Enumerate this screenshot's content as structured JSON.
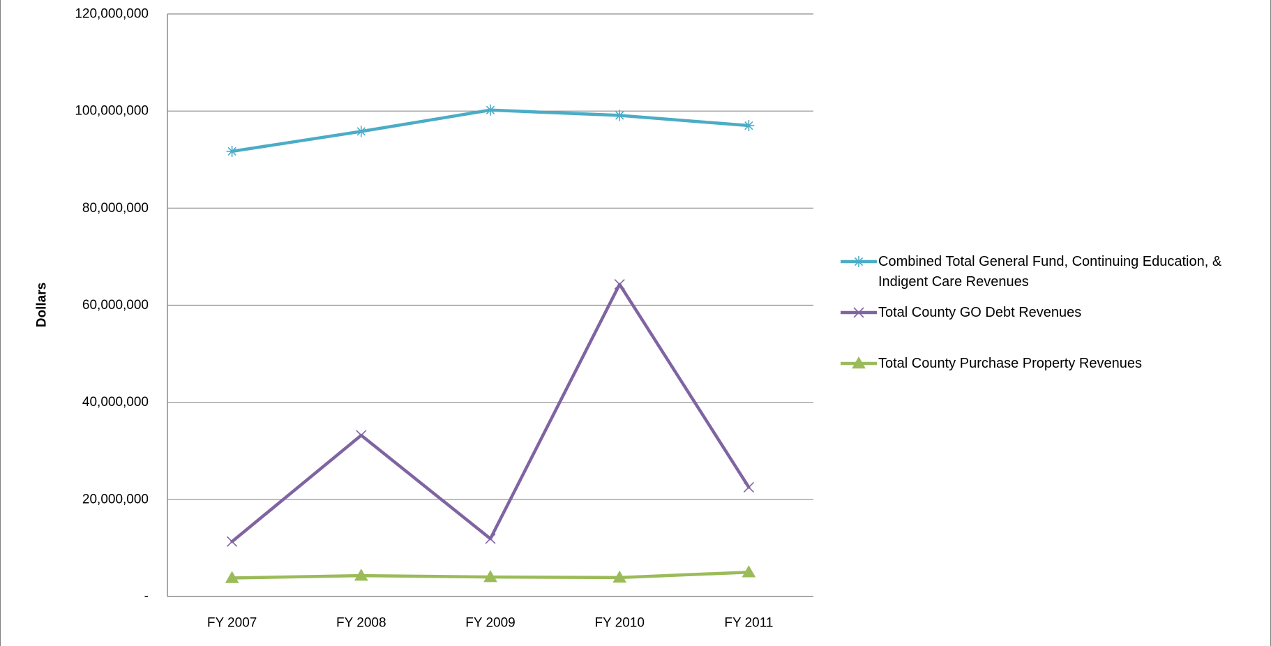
{
  "chart_data": {
    "type": "line",
    "title": "",
    "xlabel": "",
    "ylabel": "Dollars",
    "categories": [
      "FY 2007",
      "FY 2008",
      "FY 2009",
      "FY 2010",
      "FY 2011"
    ],
    "ylim": [
      0,
      120000000
    ],
    "yticks": [
      0,
      20000000,
      40000000,
      60000000,
      80000000,
      100000000,
      120000000
    ],
    "ytick_labels": [
      "-",
      "20,000,000",
      "40,000,000",
      "60,000,000",
      "80,000,000",
      "100,000,000",
      "120,000,000"
    ],
    "grid": "horizontal",
    "legend_position": "right",
    "series": [
      {
        "name": "Combined Total General Fund, Continuing Education, & Indigent Care Revenues",
        "name_lines": [
          "Combined Total General Fund, Continuing Education, &",
          "Indigent Care Revenues"
        ],
        "values": [
          91700000,
          95800000,
          100200000,
          99100000,
          97000000
        ],
        "color": "#4bacc6",
        "marker": "asterisk"
      },
      {
        "name": "Total County GO Debt Revenues",
        "name_lines": [
          "Total County GO Debt Revenues"
        ],
        "values": [
          11300000,
          33200000,
          11900000,
          64300000,
          22500000
        ],
        "color": "#8064a2",
        "marker": "x"
      },
      {
        "name": "Total County Purchase Property Revenues",
        "name_lines": [
          "Total County Purchase Property Revenues"
        ],
        "values": [
          3800000,
          4300000,
          4000000,
          3900000,
          5000000
        ],
        "color": "#9bbb59",
        "marker": "triangle"
      }
    ]
  }
}
